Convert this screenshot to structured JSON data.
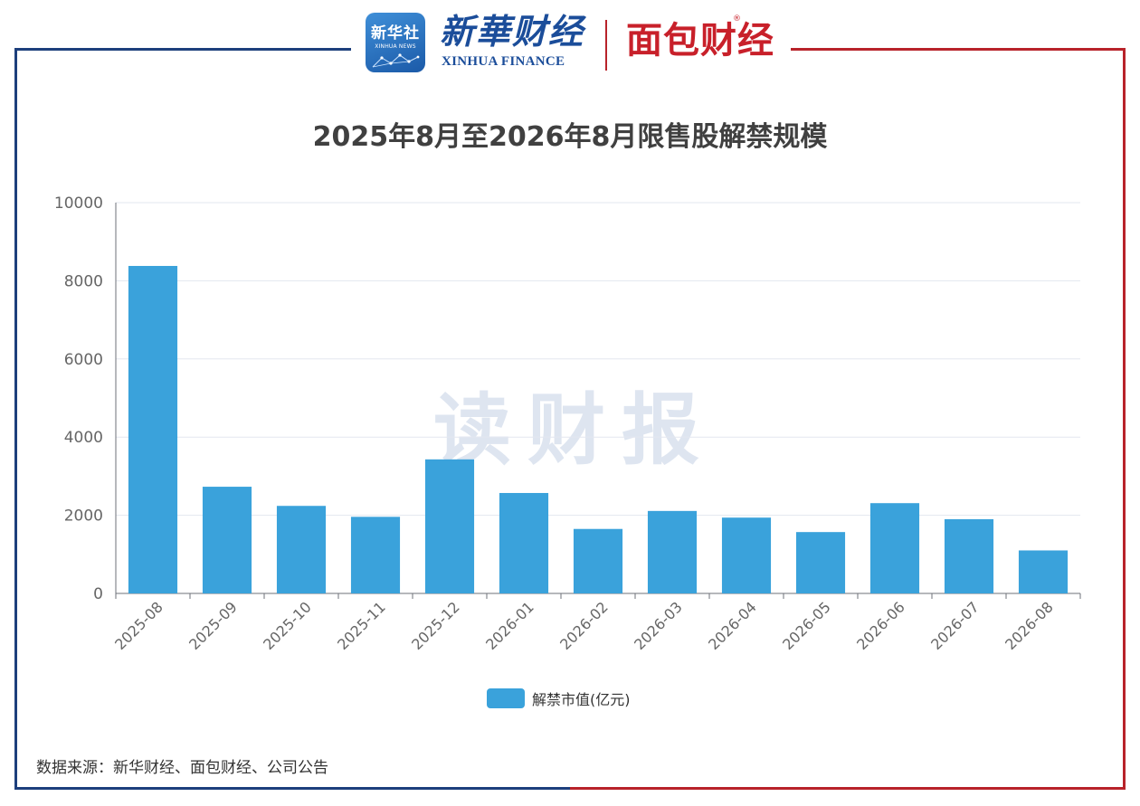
{
  "header": {
    "xinhua_news_cn": "新华社",
    "xinhua_news_en": "XINHUA NEWS",
    "finance_logo_cn": "新華财经",
    "finance_logo_en": "XINHUA FINANCE",
    "mianbao_logo": "面包财经",
    "registered_mark": "®"
  },
  "watermark": "读财报",
  "source_note": "数据来源：新华财经、面包财经、公司公告",
  "colors": {
    "bar": "#3aa2db",
    "frame_left": "#1d3f7c",
    "frame_right": "#b8232a"
  },
  "chart_data": {
    "type": "bar",
    "title": "2025年8月至2026年8月限售股解禁规模",
    "categories": [
      "2025-08",
      "2025-09",
      "2025-10",
      "2025-11",
      "2025-12",
      "2026-01",
      "2026-02",
      "2026-03",
      "2026-04",
      "2026-05",
      "2026-06",
      "2026-07",
      "2026-08"
    ],
    "series": [
      {
        "name": "解禁市值(亿元)",
        "values": [
          8380,
          2730,
          2240,
          1960,
          3430,
          2570,
          1650,
          2110,
          1940,
          1570,
          2310,
          1900,
          1100
        ]
      }
    ],
    "ylim": [
      0,
      10000
    ],
    "yticks": [
      "0",
      "2000",
      "4000",
      "6000",
      "8000",
      "10000"
    ],
    "xlabel": "",
    "ylabel": "",
    "grid": true,
    "legend_position": "bottom"
  }
}
